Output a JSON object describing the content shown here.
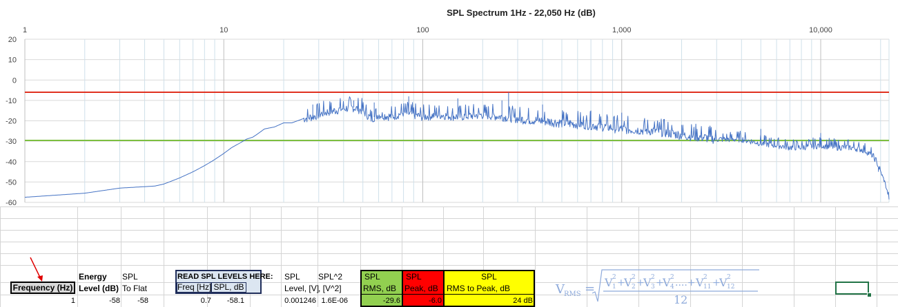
{
  "chart_data": {
    "type": "line",
    "title": "SPL Spectrum 1Hz - 22,050 Hz (dB)",
    "x_scale": "log",
    "xlim": [
      1,
      22050
    ],
    "ylim": [
      -60,
      20
    ],
    "x_tick_labels": [
      "1",
      "10",
      "100",
      "1,000",
      "10,000"
    ],
    "x_ticks": [
      1,
      10,
      100,
      1000,
      10000
    ],
    "y_ticks": [
      20,
      10,
      0,
      -10,
      -20,
      -30,
      -40,
      -50,
      -60
    ],
    "y_tick_labels": [
      "20",
      "10",
      "0",
      "-10",
      "-20",
      "-30",
      "-40",
      "-50",
      "-60"
    ],
    "grid": true,
    "series": [
      {
        "color": "#4472c4",
        "x": [
          1,
          2,
          3,
          4.5,
          5,
          6,
          7,
          8,
          9,
          10,
          11,
          12,
          13,
          14,
          15,
          16,
          18,
          20,
          22,
          25,
          28,
          32,
          36,
          40,
          45,
          50,
          55,
          60,
          70,
          80,
          90,
          100,
          120,
          150,
          200,
          250,
          300,
          400,
          500,
          700,
          1000,
          1500,
          2000,
          2500,
          3000,
          4000,
          5000,
          6000,
          7000,
          8000,
          10000,
          12000,
          14000,
          16000,
          17000,
          18000,
          19000,
          20000,
          21000,
          22050
        ],
        "y": [
          -57.5,
          -55.5,
          -53,
          -52,
          -51,
          -48,
          -45,
          -42,
          -39,
          -36,
          -33,
          -31,
          -29,
          -28,
          -26,
          -24,
          -23,
          -21,
          -21,
          -19,
          -18,
          -16,
          -15,
          -14,
          -13.5,
          -15,
          -19,
          -17,
          -18,
          -16,
          -17,
          -18,
          -17,
          -18,
          -17,
          -18,
          -19,
          -20,
          -21,
          -22,
          -24,
          -25,
          -27,
          -28,
          -29,
          -29,
          -31,
          -32,
          -33,
          -33,
          -32,
          -33,
          -33,
          -34,
          -35,
          -37,
          -40,
          -45,
          -50,
          -58
        ],
        "peaks": [
          {
            "x": 28,
            "y": -12
          },
          {
            "x": 45,
            "y": -10
          },
          {
            "x": 57,
            "y": -11
          },
          {
            "x": 85,
            "y": -8
          },
          {
            "x": 150,
            "y": -9
          },
          {
            "x": 250,
            "y": -10
          },
          {
            "x": 270,
            "y": -6
          },
          {
            "x": 400,
            "y": -12
          },
          {
            "x": 700,
            "y": -15
          },
          {
            "x": 1000,
            "y": -16
          },
          {
            "x": 2000,
            "y": -22
          },
          {
            "x": 5000,
            "y": -24
          },
          {
            "x": 10000,
            "y": -26
          },
          {
            "x": 19500,
            "y": -45
          }
        ]
      },
      {
        "color": "#e0301e",
        "x": [
          1,
          22050
        ],
        "y": [
          -6,
          -6
        ]
      },
      {
        "color": "#7cbf3f",
        "x": [
          1,
          22050
        ],
        "y": [
          -29.6,
          -29.6
        ]
      }
    ]
  },
  "sheet": {
    "headers": {
      "frequency": "Frequency (Hz)",
      "energy_top": "Energy",
      "energy_bottom": "Level (dB)",
      "spl1_top": "SPL",
      "spl1_bottom": "To Flat",
      "read_top": "READ SPL LEVELS HERE:",
      "freq_hz": "Freq [Hz]",
      "spl_db": "SPL, dB",
      "spl2_top": "SPL",
      "spl2_bottom": "Level, [V]",
      "splsq_top": "SPL^2",
      "splsq_bottom": ", [V^2]",
      "rms_top": "SPL",
      "rms_bottom": "RMS, dB",
      "peak_top": "SPL",
      "peak_bottom": "Peak, dB",
      "r2p_top": "SPL",
      "r2p_bottom": "RMS to Peak, dB"
    },
    "row1": {
      "frequency": "1",
      "energy": "-58",
      "to_flat": "-58",
      "freq_hz": "0.7",
      "spl_db": "-58.1",
      "level_v": "0.001246",
      "v2": "1.6E-06",
      "rms": "-29.6",
      "peak": "-6.0",
      "rms_to_peak": "24 dB"
    },
    "colors": {
      "rms": "#92d050",
      "peak": "#ff0000",
      "r2p": "#ffff00",
      "read_box": "#dce6f1",
      "freq_box": "#d9d9d9"
    }
  },
  "formula": {
    "lhs": "V",
    "lhs_sub": "RMS",
    "equals": "=",
    "denominator": "12",
    "terms": [
      {
        "base": "V",
        "sub": "1",
        "sup": "2",
        "op": "+"
      },
      {
        "base": "V",
        "sub": "2",
        "sup": "2",
        "op": "+"
      },
      {
        "base": "V",
        "sub": "3",
        "sup": "2",
        "op": "+"
      },
      {
        "base": "V",
        "sub": "4",
        "sup": "2",
        "op": "....+"
      },
      {
        "base": "V",
        "sub": "11",
        "sup": "2",
        "op": "+"
      },
      {
        "base": "V",
        "sub": "12",
        "sup": "2",
        "op": ""
      }
    ]
  }
}
